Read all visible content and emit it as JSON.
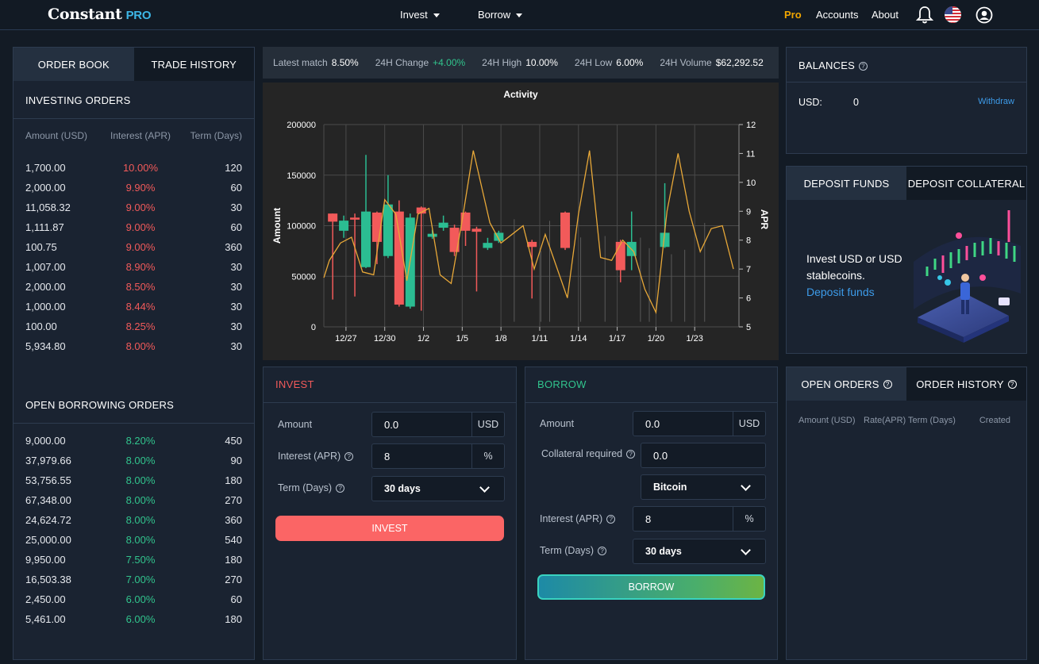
{
  "nav": {
    "logo_text": "Constant",
    "logo_pro": "PRO",
    "invest": "Invest",
    "borrow": "Borrow",
    "pro": "Pro",
    "accounts": "Accounts",
    "about": "About",
    "icons": [
      "bell-icon",
      "us-flag-icon",
      "user-icon"
    ]
  },
  "orderbook": {
    "tab_order_book": "ORDER BOOK",
    "tab_trade_history": "TRADE HISTORY",
    "investing_title": "INVESTING ORDERS",
    "col_amount": "Amount (USD)",
    "col_interest": "Interest (APR)",
    "col_term": "Term (Days)",
    "investing_orders": [
      {
        "amount": "1,700.00",
        "rate": "10.00%",
        "term": "120"
      },
      {
        "amount": "2,000.00",
        "rate": "9.90%",
        "term": "60"
      },
      {
        "amount": "11,058.32",
        "rate": "9.00%",
        "term": "30"
      },
      {
        "amount": "1,111.87",
        "rate": "9.00%",
        "term": "60"
      },
      {
        "amount": "100.75",
        "rate": "9.00%",
        "term": "360"
      },
      {
        "amount": "1,007.00",
        "rate": "8.90%",
        "term": "30"
      },
      {
        "amount": "2,000.00",
        "rate": "8.50%",
        "term": "30"
      },
      {
        "amount": "1,000.00",
        "rate": "8.44%",
        "term": "30"
      },
      {
        "amount": "100.00",
        "rate": "8.25%",
        "term": "30"
      },
      {
        "amount": "5,934.80",
        "rate": "8.00%",
        "term": "30"
      }
    ],
    "borrowing_title": "OPEN BORROWING ORDERS",
    "borrowing_orders": [
      {
        "amount": "9,000.00",
        "rate": "8.20%",
        "term": "450"
      },
      {
        "amount": "37,979.66",
        "rate": "8.00%",
        "term": "90"
      },
      {
        "amount": "53,756.55",
        "rate": "8.00%",
        "term": "180"
      },
      {
        "amount": "67,348.00",
        "rate": "8.00%",
        "term": "270"
      },
      {
        "amount": "24,624.72",
        "rate": "8.00%",
        "term": "360"
      },
      {
        "amount": "25,000.00",
        "rate": "8.00%",
        "term": "540"
      },
      {
        "amount": "9,950.00",
        "rate": "7.50%",
        "term": "180"
      },
      {
        "amount": "16,503.38",
        "rate": "7.00%",
        "term": "270"
      },
      {
        "amount": "2,450.00",
        "rate": "6.00%",
        "term": "60"
      },
      {
        "amount": "5,461.00",
        "rate": "6.00%",
        "term": "180"
      }
    ]
  },
  "stats": {
    "latest_match_label": "Latest match",
    "latest_match": "8.50%",
    "change_label": "24H Change",
    "change": "+4.00%",
    "high_label": "24H High",
    "high": "10.00%",
    "low_label": "24H Low",
    "low": "6.00%",
    "volume_label": "24H Volume",
    "volume": "$62,292.52"
  },
  "chart_data": {
    "type": "candlestick+line",
    "title": "Activity",
    "ylabel": "Amount",
    "y2label": "APR",
    "ylim": [
      0,
      200000
    ],
    "y2lim": [
      5,
      12
    ],
    "yticks": [
      "200000",
      "150000",
      "100000",
      "50000",
      "0"
    ],
    "y2ticks": [
      "12",
      "11",
      "10",
      "9",
      "8",
      "7",
      "6",
      "5"
    ],
    "xticks": [
      "12/27",
      "12/30",
      "1/2",
      "1/5",
      "1/8",
      "1/11",
      "1/14",
      "1/17",
      "1/20",
      "1/23"
    ],
    "candles": [
      {
        "x": 0.8,
        "open": 112000,
        "close": 104000,
        "high": 112000,
        "low": 27000
      },
      {
        "x": 1.8,
        "open": 95000,
        "close": 105000,
        "high": 110000,
        "low": 88000
      },
      {
        "x": 2.8,
        "open": 108000,
        "close": 106000,
        "high": 112000,
        "low": 30000
      },
      {
        "x": 3.8,
        "open": 59000,
        "close": 114000,
        "high": 170000,
        "low": 58000
      },
      {
        "x": 4.8,
        "open": 113000,
        "close": 84000,
        "high": 114000,
        "low": 62000
      },
      {
        "x": 5.8,
        "open": 70000,
        "close": 121000,
        "high": 150000,
        "low": 68000
      },
      {
        "x": 6.8,
        "open": 114000,
        "close": 22000,
        "high": 125000,
        "low": 20000
      },
      {
        "x": 7.8,
        "open": 20000,
        "close": 108000,
        "high": 112000,
        "low": 18000
      },
      {
        "x": 8.8,
        "open": 118000,
        "close": 112000,
        "high": 119000,
        "low": 16000
      },
      {
        "x": 9.8,
        "open": 89000,
        "close": 92000,
        "high": 96000,
        "low": 87000
      },
      {
        "x": 10.8,
        "open": 98000,
        "close": 103000,
        "high": 110000,
        "low": 95000
      },
      {
        "x": 11.8,
        "open": 98000,
        "close": 74000,
        "high": 101000,
        "low": 70000
      },
      {
        "x": 12.8,
        "open": 113000,
        "close": 95000,
        "high": 114000,
        "low": 80000
      },
      {
        "x": 13.8,
        "open": 97000,
        "close": 94000,
        "high": 99000,
        "low": 35000
      },
      {
        "x": 14.8,
        "open": 78000,
        "close": 83000,
        "high": 88000,
        "low": 76000
      },
      {
        "x": 15.8,
        "open": 85000,
        "close": 93000,
        "high": 95000,
        "low": 83000
      },
      {
        "x": 18.8,
        "open": 84000,
        "close": 79000,
        "high": 86000,
        "low": 28000
      },
      {
        "x": 21.8,
        "open": 113000,
        "close": 78000,
        "high": 114000,
        "low": 76000
      },
      {
        "x": 26.8,
        "open": 84000,
        "close": 56000,
        "high": 86000,
        "low": 44000
      },
      {
        "x": 27.8,
        "open": 70000,
        "close": 84000,
        "high": 114000,
        "low": 56000
      },
      {
        "x": 30.8,
        "open": 79000,
        "close": 93000,
        "high": 142000,
        "low": 78000
      }
    ],
    "apr_line": [
      {
        "x": 0,
        "y": 6.7
      },
      {
        "x": 0.5,
        "y": 7.3
      },
      {
        "x": 1.5,
        "y": 7.9
      },
      {
        "x": 2.5,
        "y": 8.1
      },
      {
        "x": 3.5,
        "y": 6.9
      },
      {
        "x": 4.5,
        "y": 6.8
      },
      {
        "x": 5.5,
        "y": 9.4
      },
      {
        "x": 6.5,
        "y": 8.9
      },
      {
        "x": 7.5,
        "y": 6.6
      },
      {
        "x": 8.5,
        "y": 8.9
      },
      {
        "x": 9.5,
        "y": 9.1
      },
      {
        "x": 10.5,
        "y": 6.8
      },
      {
        "x": 11.5,
        "y": 6.5
      },
      {
        "x": 12.5,
        "y": 8.7
      },
      {
        "x": 13.5,
        "y": 11.1
      },
      {
        "x": 15.0,
        "y": 8.6
      },
      {
        "x": 16.0,
        "y": 7.9
      },
      {
        "x": 17.0,
        "y": 8.2
      },
      {
        "x": 18.0,
        "y": 8.5
      },
      {
        "x": 19.0,
        "y": 7.0
      },
      {
        "x": 20.0,
        "y": 8.2
      },
      {
        "x": 21.0,
        "y": 7.1
      },
      {
        "x": 22.0,
        "y": 6.0
      },
      {
        "x": 23.0,
        "y": 8.9
      },
      {
        "x": 24.0,
        "y": 11.1
      },
      {
        "x": 25.0,
        "y": 7.4
      },
      {
        "x": 26.0,
        "y": 7.3
      },
      {
        "x": 27.0,
        "y": 8.0
      },
      {
        "x": 28.0,
        "y": 7.6
      },
      {
        "x": 29.0,
        "y": 6.3
      },
      {
        "x": 30.0,
        "y": 5.5
      },
      {
        "x": 31.0,
        "y": 9.0
      },
      {
        "x": 32.0,
        "y": 11.0
      },
      {
        "x": 33.0,
        "y": 9.0
      },
      {
        "x": 34.0,
        "y": 7.6
      },
      {
        "x": 35.0,
        "y": 8.4
      },
      {
        "x": 36.0,
        "y": 8.5
      },
      {
        "x": 37.0,
        "y": 7.0
      }
    ],
    "x_range": [
      0,
      37.5
    ],
    "colors": {
      "up": "#2bbd92",
      "down": "#f25a5a",
      "line": "#e8a838",
      "background": "#252525",
      "grid": "#4a4a4a"
    }
  },
  "invest": {
    "title": "INVEST",
    "amount_label": "Amount",
    "amount_value": "0.0",
    "amount_unit": "USD",
    "interest_label": "Interest (APR)",
    "interest_value": "8",
    "interest_unit": "%",
    "term_label": "Term (Days)",
    "term_value": "30 days",
    "button": "INVEST"
  },
  "borrow": {
    "title": "BORROW",
    "amount_label": "Amount",
    "amount_value": "0.0",
    "amount_unit": "USD",
    "collateral_label": "Collateral required",
    "collateral_value": "0.0",
    "collateral_asset": "Bitcoin",
    "interest_label": "Interest (APR)",
    "interest_value": "8",
    "interest_unit": "%",
    "term_label": "Term (Days)",
    "term_value": "30 days",
    "button": "BORROW"
  },
  "balances": {
    "title": "BALANCES",
    "currency": "USD:",
    "amount": "0",
    "withdraw": "Withdraw"
  },
  "deposit": {
    "tab_funds": "DEPOSIT FUNDS",
    "tab_collateral": "DEPOSIT COLLATERAL",
    "text": "Invest USD or USD stablecoins.",
    "link": "Deposit funds"
  },
  "orders": {
    "tab_open": "OPEN ORDERS",
    "tab_history": "ORDER HISTORY",
    "col_amount": "Amount (USD)",
    "col_rate": "Rate(APR)",
    "col_term": "Term (Days)",
    "col_created": "Created"
  },
  "colors": {
    "accent_blue": "#3db6e6",
    "pro_orange": "#f0a500",
    "red": "#f25a5a",
    "green": "#31c48d",
    "invest_button": "#fb6565"
  }
}
